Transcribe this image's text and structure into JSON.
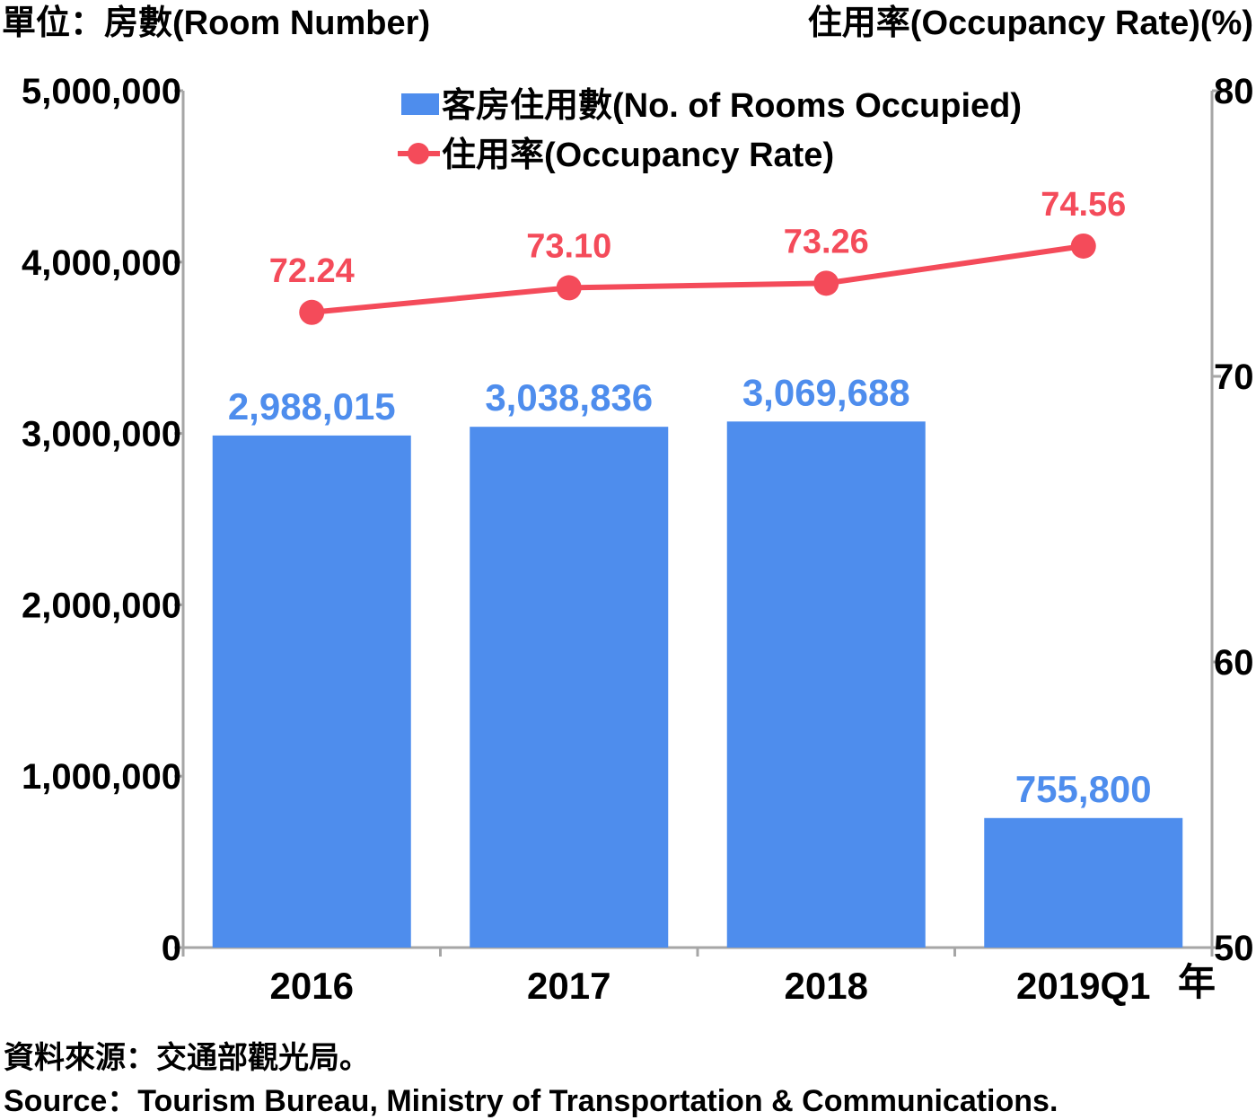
{
  "chart_data": {
    "type": "bar",
    "categories": [
      "2016",
      "2017",
      "2018",
      "2019Q1"
    ],
    "x_unit": "年",
    "left_axis": {
      "label": "單位：房數(Room Number)",
      "ylim": [
        0,
        5000000
      ],
      "ticks": [
        "0",
        "1,000,000",
        "2,000,000",
        "3,000,000",
        "4,000,000",
        "5,000,000"
      ]
    },
    "right_axis": {
      "label": "住用率(Occupancy Rate)(%)",
      "ylim": [
        50,
        80
      ],
      "ticks": [
        "50",
        "60",
        "70",
        "80"
      ]
    },
    "series": [
      {
        "name": "客房住用數(No. of Rooms Occupied)",
        "type": "bar",
        "axis": "left",
        "color": "#4e8ded",
        "values": [
          2988015,
          3038836,
          3069688,
          755800
        ],
        "labels": [
          "2,988,015",
          "3,038,836",
          "3,069,688",
          "755,800"
        ]
      },
      {
        "name": "住用率(Occupancy Rate)",
        "type": "line",
        "axis": "right",
        "color": "#f44b5a",
        "values": [
          72.24,
          73.1,
          73.26,
          74.56
        ],
        "labels": [
          "72.24",
          "73.10",
          "73.26",
          "74.56"
        ]
      }
    ],
    "legend_position": "top-center",
    "grid": false
  },
  "source": {
    "chinese": "資料來源：交通部觀光局。",
    "english": "Source：Tourism Bureau, Ministry of Transportation & Communications."
  }
}
